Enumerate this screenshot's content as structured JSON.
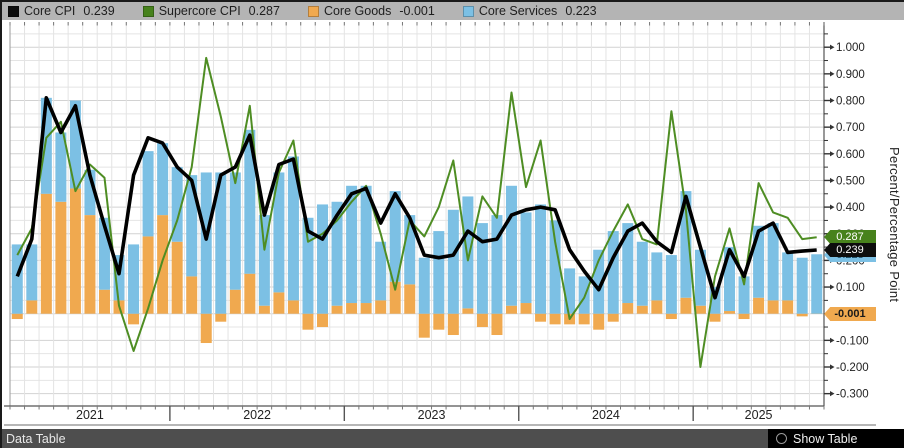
{
  "ui": {
    "legend": {
      "items": [
        {
          "name": "core-cpi",
          "label": "Core CPI",
          "value": "0.239",
          "color": "#0d0d0d"
        },
        {
          "name": "supercore-cpi",
          "label": "Supercore CPI",
          "value": "0.287",
          "color": "#47821c"
        },
        {
          "name": "core-goods",
          "label": "Core Goods",
          "value": "-0.001",
          "color": "#f0a94f"
        },
        {
          "name": "core-services",
          "label": "Core Services",
          "value": "0.223",
          "color": "#7cc0e4"
        }
      ]
    },
    "badges": {
      "supercore": "0.287",
      "core": "0.239",
      "services": "0.223",
      "goods": "-0.001"
    },
    "y_axis_title": "Percent/Percentage Point",
    "footer": {
      "data_table": "Data Table",
      "show_table": "Show Table"
    }
  },
  "chart_data": {
    "type": "bar",
    "subtype": "stacked-bars-with-lines",
    "title": "",
    "ylabel": "Percent/Percentage Point",
    "ylim": [
      -0.35,
      1.09
    ],
    "ytick_step": 0.1,
    "ytick_labels": [
      "1.000",
      "0.900",
      "0.800",
      "0.700",
      "0.600",
      "0.500",
      "0.400",
      "0.300",
      "0.200",
      "0.100",
      "0.000",
      "-0.100",
      "-0.200",
      "-0.300"
    ],
    "x_year_labels": [
      "2021",
      "2022",
      "2023",
      "2024",
      "2025"
    ],
    "legend_position": "top",
    "grid": true,
    "months": [
      "2021-02",
      "2021-03",
      "2021-04",
      "2021-05",
      "2021-06",
      "2021-07",
      "2021-08",
      "2021-09",
      "2021-10",
      "2021-11",
      "2021-12",
      "2022-01",
      "2022-02",
      "2022-03",
      "2022-04",
      "2022-05",
      "2022-06",
      "2022-07",
      "2022-08",
      "2022-09",
      "2022-10",
      "2022-11",
      "2022-12",
      "2023-01",
      "2023-02",
      "2023-03",
      "2023-04",
      "2023-05",
      "2023-06",
      "2023-07",
      "2023-08",
      "2023-09",
      "2023-10",
      "2023-11",
      "2023-12",
      "2024-01",
      "2024-02",
      "2024-03",
      "2024-04",
      "2024-05",
      "2024-06",
      "2024-07",
      "2024-08",
      "2024-09",
      "2024-10",
      "2024-11",
      "2024-12",
      "2025-01",
      "2025-02",
      "2025-03",
      "2025-04",
      "2025-05",
      "2025-06",
      "2025-07",
      "2025-08",
      "2025-09"
    ],
    "series": [
      {
        "name": "Core Goods",
        "type": "bar-stack",
        "color": "#f0a94f",
        "latest": -0.001,
        "values": [
          -0.02,
          0.05,
          0.45,
          0.42,
          0.47,
          0.37,
          0.09,
          0.05,
          -0.04,
          0.29,
          0.37,
          0.27,
          0.14,
          -0.11,
          -0.03,
          0.09,
          0.15,
          0.03,
          0.08,
          0.05,
          -0.06,
          -0.05,
          0.03,
          0.04,
          0.04,
          0.05,
          0.12,
          0.11,
          -0.09,
          -0.06,
          -0.08,
          0.02,
          -0.05,
          -0.08,
          0.03,
          0.04,
          -0.03,
          -0.04,
          -0.04,
          -0.04,
          -0.06,
          -0.03,
          0.04,
          0.03,
          0.05,
          -0.02,
          0.06,
          0.03,
          -0.03,
          0.01,
          -0.02,
          0.06,
          0.05,
          0.05,
          -0.01,
          -0.001
        ]
      },
      {
        "name": "Core Services",
        "type": "bar-stack",
        "color": "#7cc0e4",
        "latest": 0.223,
        "values": [
          0.26,
          0.21,
          0.36,
          0.26,
          0.33,
          0.17,
          0.27,
          0.17,
          0.26,
          0.32,
          0.27,
          0.28,
          0.38,
          0.53,
          0.53,
          0.44,
          0.54,
          0.34,
          0.45,
          0.54,
          0.36,
          0.41,
          0.39,
          0.44,
          0.44,
          0.22,
          0.34,
          0.26,
          0.21,
          0.31,
          0.39,
          0.42,
          0.34,
          0.37,
          0.45,
          0.34,
          0.41,
          0.35,
          0.17,
          0.14,
          0.24,
          0.31,
          0.3,
          0.24,
          0.18,
          0.22,
          0.4,
          0.21,
          0.1,
          0.24,
          0.14,
          0.27,
          0.29,
          0.18,
          0.21,
          0.223
        ]
      },
      {
        "name": "Supercore CPI",
        "type": "line",
        "color": "#4e8d23",
        "latest": 0.287,
        "values": [
          0.22,
          0.32,
          0.66,
          0.72,
          0.46,
          0.56,
          0.51,
          0.03,
          -0.14,
          0.02,
          0.2,
          0.35,
          0.55,
          0.96,
          0.74,
          0.49,
          0.78,
          0.24,
          0.53,
          0.65,
          0.27,
          0.3,
          0.35,
          0.42,
          0.48,
          0.3,
          0.09,
          0.35,
          0.29,
          0.4,
          0.575,
          0.2,
          0.44,
          0.36,
          0.83,
          0.475,
          0.65,
          0.27,
          -0.02,
          0.06,
          0.2,
          0.31,
          0.41,
          0.28,
          0.26,
          0.76,
          0.39,
          -0.2,
          0.14,
          0.32,
          0.11,
          0.49,
          0.38,
          0.36,
          0.28,
          0.287
        ]
      },
      {
        "name": "Core CPI",
        "type": "line",
        "color": "#000000",
        "latest": 0.239,
        "values": [
          0.14,
          0.28,
          0.81,
          0.68,
          0.78,
          0.52,
          0.33,
          0.15,
          0.52,
          0.66,
          0.64,
          0.55,
          0.5,
          0.28,
          0.52,
          0.55,
          0.67,
          0.37,
          0.56,
          0.58,
          0.31,
          0.28,
          0.37,
          0.45,
          0.47,
          0.34,
          0.45,
          0.36,
          0.22,
          0.21,
          0.22,
          0.31,
          0.27,
          0.28,
          0.37,
          0.39,
          0.4,
          0.39,
          0.24,
          0.16,
          0.09,
          0.21,
          0.31,
          0.34,
          0.27,
          0.23,
          0.44,
          0.25,
          0.06,
          0.24,
          0.14,
          0.31,
          0.34,
          0.23,
          0.235,
          0.239
        ]
      }
    ]
  }
}
